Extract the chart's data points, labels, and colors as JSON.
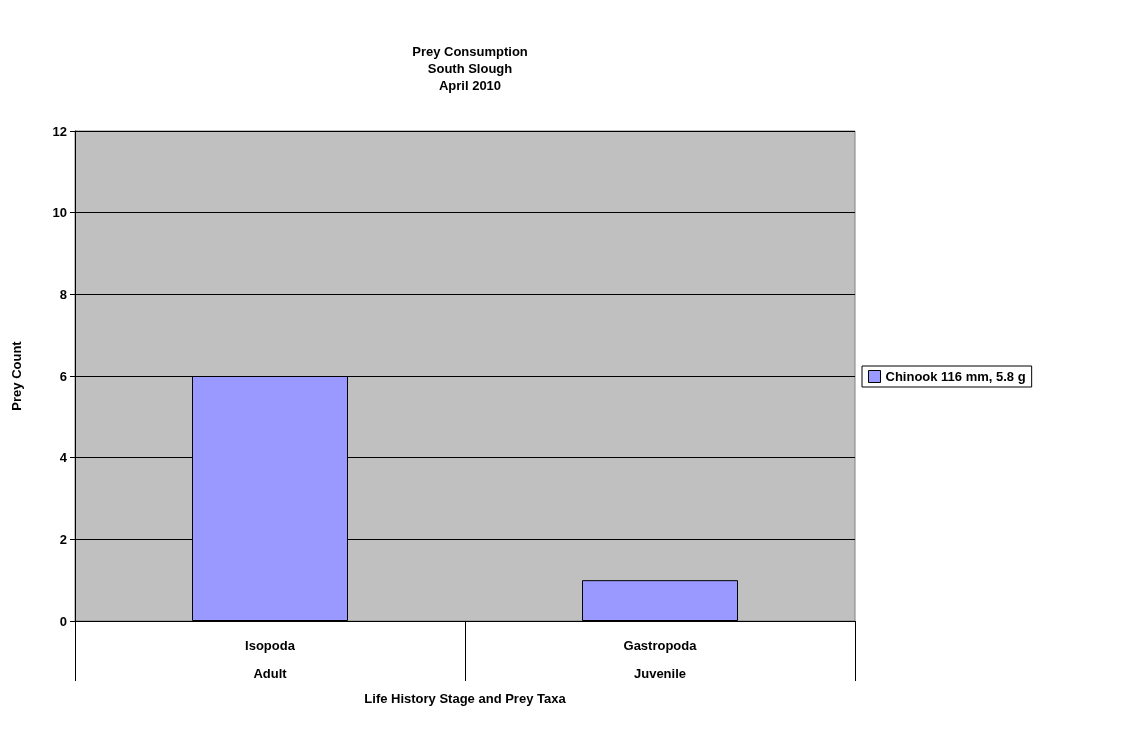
{
  "chart_data": {
    "type": "bar",
    "title": "Prey Consumption\nSouth Slough\nApril 2010",
    "xlabel": "Life History Stage and Prey Taxa",
    "ylabel": "Prey Count",
    "categories": [
      "Isopoda\nAdult",
      "Gastropoda\nJuvenile"
    ],
    "series": [
      {
        "name": "Chinook 116 mm, 5.8 g",
        "color": "#9999ff",
        "values": [
          6,
          1
        ]
      }
    ],
    "ylim": [
      0,
      12
    ],
    "yticks": [
      0,
      2,
      4,
      6,
      8,
      10,
      12
    ],
    "grid": "y",
    "legend": "right"
  }
}
